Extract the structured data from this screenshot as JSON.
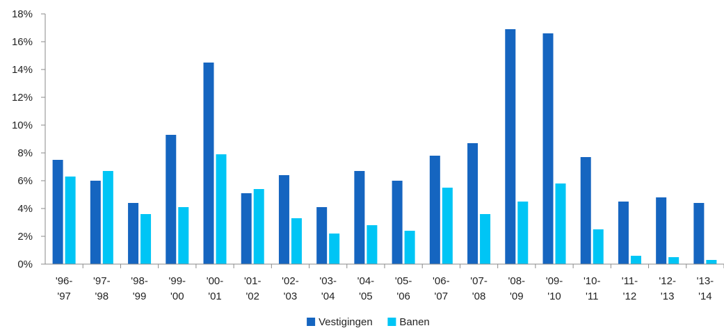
{
  "chart_data": {
    "type": "bar",
    "categories": [
      [
        "'96-",
        "'97"
      ],
      [
        "'97-",
        "'98"
      ],
      [
        "'98-",
        "'99"
      ],
      [
        "'99-",
        "'00"
      ],
      [
        "'00-",
        "'01"
      ],
      [
        "'01-",
        "'02"
      ],
      [
        "'02-",
        "'03"
      ],
      [
        "'03-",
        "'04"
      ],
      [
        "'04-",
        "'05"
      ],
      [
        "'05-",
        "'06"
      ],
      [
        "'06-",
        "'07"
      ],
      [
        "'07-",
        "'08"
      ],
      [
        "'08-",
        "'09"
      ],
      [
        "'09-",
        "'10"
      ],
      [
        "'10-",
        "'11"
      ],
      [
        "'11-",
        "'12"
      ],
      [
        "'12-",
        "'13"
      ],
      [
        "'13-",
        "'14"
      ]
    ],
    "series": [
      {
        "name": "Vestigingen",
        "color": "#1565C0",
        "values": [
          7.5,
          6.0,
          4.4,
          9.3,
          14.5,
          5.1,
          6.4,
          4.1,
          6.7,
          6.0,
          7.8,
          8.7,
          16.9,
          16.6,
          7.7,
          4.5,
          4.8,
          4.4
        ]
      },
      {
        "name": "Banen",
        "color": "#00C5F5",
        "values": [
          6.3,
          6.7,
          3.6,
          4.1,
          7.9,
          5.4,
          3.3,
          2.2,
          2.8,
          2.4,
          5.5,
          3.6,
          4.5,
          5.8,
          2.5,
          0.6,
          0.5,
          0.3
        ]
      }
    ],
    "ylim": [
      0,
      18
    ],
    "yticks": [
      0,
      2,
      4,
      6,
      8,
      10,
      12,
      14,
      16,
      18
    ],
    "ytick_format": "%",
    "legend": "bottom-center",
    "grid": false
  }
}
